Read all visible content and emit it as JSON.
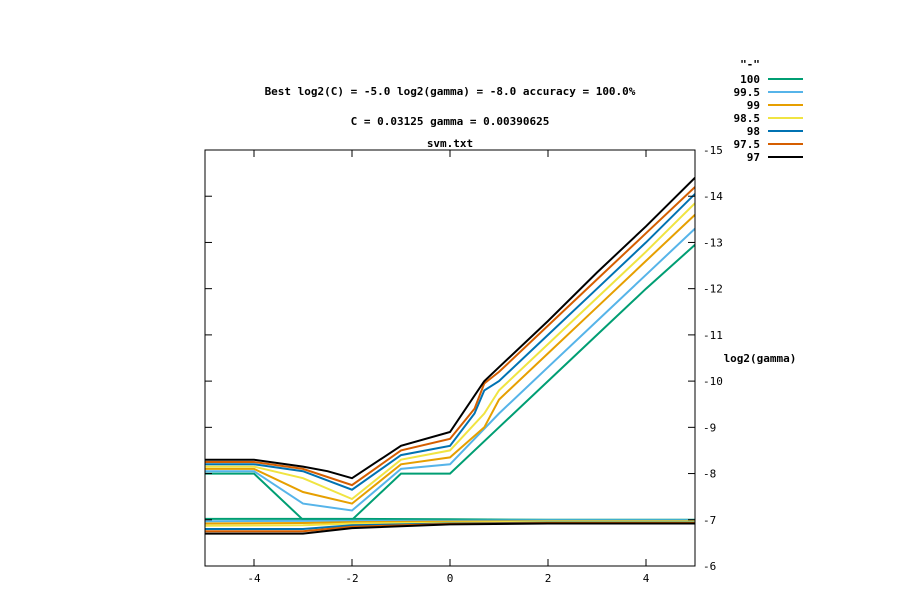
{
  "header": {
    "title_line1": "Best log2(C) = -5.0  log2(gamma) = -8.0  accuracy = 100.0%",
    "title_line2": "C = 0.03125  gamma = 0.00390625",
    "plot_title": "svm.txt"
  },
  "legend_title": "\"-\"",
  "chart_data": {
    "type": "line",
    "title": "svm.txt",
    "xlabel": "",
    "ylabel": "log2(gamma)",
    "xlim": [
      -5,
      5
    ],
    "ylim": [
      -6,
      -15
    ],
    "y_axis_side": "right",
    "y_axis_reversed": true,
    "x_ticks": [
      -4,
      -2,
      0,
      2,
      4
    ],
    "y_ticks": [
      -15,
      -14,
      -13,
      -12,
      -11,
      -10,
      -9,
      -8,
      -7,
      -6
    ],
    "legend_position": "top-right (outside plot)",
    "grid": false,
    "series": [
      {
        "name": "100",
        "color": "#009e73",
        "lines": [
          [
            [
              -5,
              -8.0
            ],
            [
              -4,
              -8.0
            ],
            [
              -3,
              -7.0
            ],
            [
              -2,
              -7.0
            ],
            [
              -1,
              -8.0
            ],
            [
              0,
              -8.0
            ],
            [
              1,
              -9.0
            ],
            [
              2,
              -10.0
            ],
            [
              3,
              -11.0
            ],
            [
              4,
              -12.0
            ],
            [
              5,
              -12.95
            ]
          ],
          [
            [
              -5,
              -7.02
            ],
            [
              -2,
              -7.02
            ],
            [
              0,
              -7.01
            ],
            [
              2,
              -7.0
            ],
            [
              5,
              -7.0
            ]
          ]
        ]
      },
      {
        "name": "99.5",
        "color": "#56b4e9",
        "lines": [
          [
            [
              -5,
              -8.05
            ],
            [
              -4,
              -8.05
            ],
            [
              -3,
              -7.35
            ],
            [
              -2,
              -7.2
            ],
            [
              -1,
              -8.1
            ],
            [
              0,
              -8.2
            ],
            [
              1,
              -9.3
            ],
            [
              2,
              -10.3
            ],
            [
              3,
              -11.3
            ],
            [
              4,
              -12.3
            ],
            [
              5,
              -13.3
            ]
          ],
          [
            [
              -5,
              -6.97
            ],
            [
              -2,
              -6.98
            ],
            [
              0,
              -6.98
            ],
            [
              2,
              -6.99
            ],
            [
              5,
              -6.99
            ]
          ]
        ]
      },
      {
        "name": "99",
        "color": "#e69f00",
        "lines": [
          [
            [
              -5,
              -8.1
            ],
            [
              -4,
              -8.1
            ],
            [
              -3,
              -7.6
            ],
            [
              -2,
              -7.35
            ],
            [
              -1,
              -8.2
            ],
            [
              0,
              -8.35
            ],
            [
              0.7,
              -9.0
            ],
            [
              1,
              -9.6
            ],
            [
              2,
              -10.6
            ],
            [
              3,
              -11.6
            ],
            [
              4,
              -12.6
            ],
            [
              5,
              -13.6
            ]
          ],
          [
            [
              -5,
              -6.92
            ],
            [
              -3,
              -6.93
            ],
            [
              -2,
              -6.95
            ],
            [
              0,
              -6.96
            ],
            [
              2,
              -6.97
            ],
            [
              5,
              -6.97
            ]
          ]
        ]
      },
      {
        "name": "98.5",
        "color": "#f0e442",
        "lines": [
          [
            [
              -5,
              -8.15
            ],
            [
              -4,
              -8.15
            ],
            [
              -3,
              -7.9
            ],
            [
              -2,
              -7.45
            ],
            [
              -1,
              -8.3
            ],
            [
              0,
              -8.5
            ],
            [
              0.7,
              -9.3
            ],
            [
              1,
              -9.8
            ],
            [
              2,
              -10.8
            ],
            [
              3,
              -11.8
            ],
            [
              4,
              -12.8
            ],
            [
              5,
              -13.85
            ]
          ],
          [
            [
              -5,
              -6.87
            ],
            [
              -3,
              -6.88
            ],
            [
              -2,
              -6.92
            ],
            [
              0,
              -6.94
            ],
            [
              2,
              -6.96
            ],
            [
              5,
              -6.96
            ]
          ]
        ]
      },
      {
        "name": "98",
        "color": "#0072b2",
        "lines": [
          [
            [
              -5,
              -8.2
            ],
            [
              -4,
              -8.2
            ],
            [
              -3,
              -8.05
            ],
            [
              -2,
              -7.65
            ],
            [
              -1,
              -8.4
            ],
            [
              0,
              -8.6
            ],
            [
              0.5,
              -9.3
            ],
            [
              0.7,
              -9.8
            ],
            [
              1,
              -10.0
            ],
            [
              2,
              -11.0
            ],
            [
              3,
              -12.0
            ],
            [
              4,
              -13.0
            ],
            [
              5,
              -14.05
            ]
          ],
          [
            [
              -5,
              -6.8
            ],
            [
              -3,
              -6.8
            ],
            [
              -2,
              -6.88
            ],
            [
              0,
              -6.92
            ],
            [
              2,
              -6.94
            ],
            [
              5,
              -6.94
            ]
          ]
        ]
      },
      {
        "name": "97.5",
        "color": "#d55e00",
        "lines": [
          [
            [
              -5,
              -8.25
            ],
            [
              -4,
              -8.25
            ],
            [
              -3,
              -8.1
            ],
            [
              -2,
              -7.75
            ],
            [
              -1,
              -8.5
            ],
            [
              0,
              -8.75
            ],
            [
              0.5,
              -9.4
            ],
            [
              0.7,
              -9.95
            ],
            [
              1,
              -10.2
            ],
            [
              2,
              -11.2
            ],
            [
              3,
              -12.2
            ],
            [
              4,
              -13.2
            ],
            [
              5,
              -14.2
            ]
          ],
          [
            [
              -5,
              -6.75
            ],
            [
              -3,
              -6.75
            ],
            [
              -2,
              -6.85
            ],
            [
              0,
              -6.91
            ],
            [
              2,
              -6.93
            ],
            [
              5,
              -6.93
            ]
          ]
        ]
      },
      {
        "name": "97",
        "color": "#000000",
        "lines": [
          [
            [
              -5,
              -8.3
            ],
            [
              -4,
              -8.3
            ],
            [
              -3,
              -8.15
            ],
            [
              -2.5,
              -8.05
            ],
            [
              -2,
              -7.9
            ],
            [
              -1,
              -8.6
            ],
            [
              0,
              -8.9
            ],
            [
              0.7,
              -10.0
            ],
            [
              1,
              -10.3
            ],
            [
              2,
              -11.3
            ],
            [
              3,
              -12.35
            ],
            [
              4,
              -13.35
            ],
            [
              5,
              -14.4
            ]
          ],
          [
            [
              -5,
              -6.7
            ],
            [
              -3,
              -6.7
            ],
            [
              -2,
              -6.82
            ],
            [
              0,
              -6.9
            ],
            [
              2,
              -6.92
            ],
            [
              5,
              -6.92
            ]
          ]
        ]
      }
    ]
  }
}
